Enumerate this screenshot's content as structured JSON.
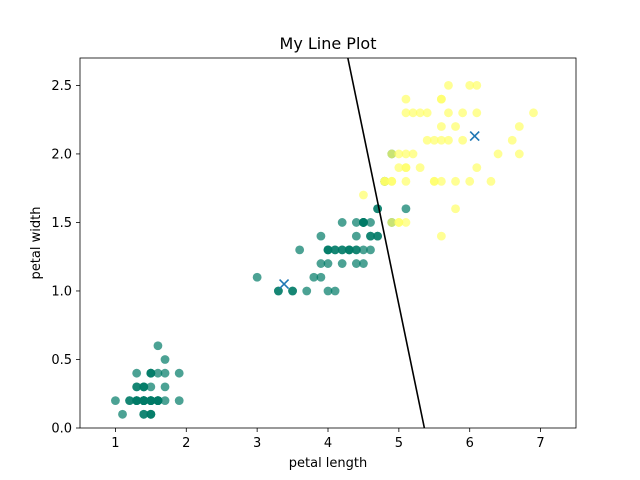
{
  "chart_data": {
    "type": "scatter",
    "title": "My Line Plot",
    "xlabel": "petal length",
    "ylabel": "petal width",
    "xlim": [
      0.5,
      7.5
    ],
    "ylim": [
      0.0,
      2.7
    ],
    "xticks": [
      "1",
      "2",
      "3",
      "4",
      "5",
      "6",
      "7"
    ],
    "yticks": [
      "0.0",
      "0.5",
      "1.0",
      "1.5",
      "2.0",
      "2.5"
    ],
    "grid": false,
    "colors": {
      "class_low": "#007a66",
      "class_high": "#ffff66",
      "centroid": "#1f77b4",
      "boundary": "#000000"
    },
    "series": [
      {
        "color_key": "class_low",
        "x": [
          1.4,
          1.4,
          1.3,
          1.5,
          1.4,
          1.7,
          1.4,
          1.5,
          1.4,
          1.5,
          1.5,
          1.6,
          1.4,
          1.1,
          1.2,
          1.5,
          1.3,
          1.4,
          1.7,
          1.5,
          1.7,
          1.5,
          1.0,
          1.7,
          1.9,
          1.6,
          1.6,
          1.5,
          1.4,
          1.6,
          1.6,
          1.5,
          1.5,
          1.4,
          1.5,
          1.2,
          1.3,
          1.4,
          1.3,
          1.5,
          1.3,
          1.3,
          1.3,
          1.6,
          1.9,
          1.4,
          1.6,
          1.4,
          1.5,
          1.4,
          4.5,
          4.5,
          4.0,
          4.6,
          4.5,
          4.7,
          3.3,
          4.6,
          3.9,
          3.5,
          4.2,
          4.0,
          4.7,
          3.6,
          4.4,
          4.5,
          4.1,
          4.5,
          3.9,
          4.0,
          4.4,
          4.8,
          4.3,
          4.4,
          4.5,
          3.5,
          3.8,
          3.7,
          3.9,
          5.1,
          4.5,
          4.7,
          4.4,
          4.1,
          4.0,
          4.4,
          4.6,
          4.0,
          3.3,
          4.2,
          4.2,
          4.2,
          4.3,
          3.0,
          4.1,
          4.9,
          4.7,
          4.6,
          4.8,
          4.9,
          4.3
        ],
        "y": [
          0.2,
          0.2,
          0.2,
          0.2,
          0.2,
          0.4,
          0.3,
          0.2,
          0.2,
          0.1,
          0.2,
          0.2,
          0.1,
          0.1,
          0.2,
          0.4,
          0.4,
          0.3,
          0.3,
          0.3,
          0.2,
          0.4,
          0.2,
          0.5,
          0.2,
          0.2,
          0.4,
          0.2,
          0.2,
          0.2,
          0.2,
          0.4,
          0.1,
          0.2,
          0.1,
          0.2,
          0.2,
          0.1,
          0.2,
          0.2,
          0.3,
          0.3,
          0.2,
          0.6,
          0.4,
          0.3,
          0.2,
          0.2,
          0.2,
          0.2,
          1.5,
          1.5,
          1.3,
          1.5,
          1.3,
          1.6,
          1.0,
          1.3,
          1.4,
          1.0,
          1.5,
          1.0,
          1.4,
          1.3,
          1.4,
          1.5,
          1.0,
          1.5,
          1.1,
          1.3,
          1.3,
          1.8,
          1.3,
          1.2,
          1.2,
          1.0,
          1.1,
          1.0,
          1.2,
          1.6,
          1.5,
          1.6,
          1.5,
          1.3,
          1.3,
          1.3,
          1.4,
          1.2,
          1.0,
          1.3,
          1.2,
          1.3,
          1.3,
          1.1,
          1.3,
          1.5,
          1.4,
          1.4,
          1.8,
          2.0,
          1.3
        ]
      },
      {
        "color_key": "class_high",
        "x": [
          6.0,
          5.1,
          5.9,
          5.6,
          5.8,
          6.6,
          4.5,
          6.3,
          5.8,
          6.1,
          5.1,
          5.3,
          5.5,
          5.0,
          5.1,
          5.3,
          5.5,
          6.7,
          6.9,
          5.0,
          5.7,
          4.9,
          6.7,
          4.9,
          5.7,
          6.0,
          4.8,
          4.9,
          5.6,
          5.8,
          6.1,
          6.4,
          5.6,
          5.1,
          5.6,
          6.1,
          5.6,
          5.5,
          4.8,
          5.4,
          5.6,
          5.1,
          5.1,
          5.9,
          5.7,
          5.2,
          5.0,
          5.2,
          5.4,
          5.1,
          4.9,
          4.8,
          5.0
        ],
        "y": [
          2.5,
          1.9,
          2.1,
          1.8,
          2.2,
          2.1,
          1.7,
          1.8,
          1.8,
          2.5,
          2.0,
          1.9,
          2.1,
          2.0,
          2.4,
          2.3,
          1.8,
          2.2,
          2.3,
          1.5,
          2.3,
          2.0,
          2.0,
          1.8,
          2.1,
          1.8,
          1.8,
          1.8,
          2.1,
          1.6,
          1.9,
          2.0,
          2.2,
          1.5,
          1.4,
          2.3,
          2.4,
          1.8,
          1.8,
          2.1,
          2.4,
          2.3,
          1.9,
          2.3,
          2.5,
          2.3,
          1.9,
          2.0,
          2.3,
          1.8,
          1.5,
          1.8,
          1.5
        ]
      },
      {
        "color_key": "centroid",
        "marker": "x",
        "x": [
          3.38,
          6.07
        ],
        "y": [
          1.05,
          2.13
        ]
      }
    ],
    "boundary_line": {
      "color_key": "boundary",
      "x": [
        4.28,
        5.36
      ],
      "y": [
        2.7,
        0.0
      ]
    }
  }
}
